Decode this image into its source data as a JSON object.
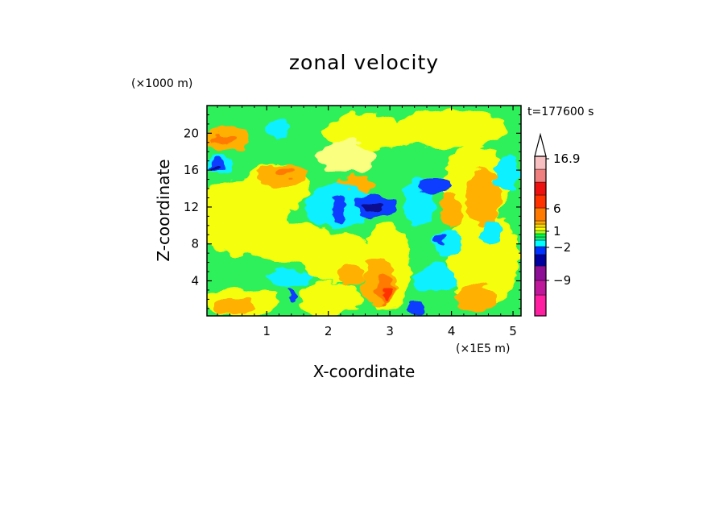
{
  "chart_data": {
    "type": "heatmap",
    "title": "zonal velocity",
    "xlabel": "X-coordinate",
    "ylabel": "Z-coordinate",
    "x_scale_label": "(×1E5 m)",
    "y_scale_label": "(×1000 m)",
    "time_label": "t=177600 s",
    "xlim": [
      0.03,
      5.13
    ],
    "ylim": [
      0.2,
      23.0
    ],
    "x_ticks": [
      1,
      2,
      3,
      4,
      5
    ],
    "x_tick_labels": [
      "1",
      "2",
      "3",
      "4",
      "5"
    ],
    "y_ticks": [
      4,
      8,
      12,
      16,
      20
    ],
    "y_tick_labels": [
      "4",
      "8",
      "12",
      "16",
      "20"
    ],
    "colorbar": {
      "labels": [
        {
          "text": "16.9",
          "at_level": 16.9
        },
        {
          "text": "6",
          "at_level": 6
        },
        {
          "text": "1",
          "at_level": 1
        },
        {
          "text": "−2",
          "at_level": -2
        },
        {
          "text": "−9",
          "at_level": -9
        }
      ],
      "colors": [
        "#ff1fa0",
        "#c0189a",
        "#8c0f96",
        "#0000a0",
        "#0033ff",
        "#00ffff",
        "#19e87a",
        "#00ff44",
        "#aaff22",
        "#ffff00",
        "#ffd700",
        "#ffaa00",
        "#ff7a00",
        "#ff3300",
        "#ee1111",
        "#f08080",
        "#f8c0c0"
      ],
      "extend_color": "#ffffff"
    },
    "colors": {
      "bg_green": "#2ef05a",
      "yellow": "#f5ff10",
      "light_yellow": "#faff80",
      "orange": "#ffb000",
      "dark_orange": "#ff7a00",
      "red": "#ff3300",
      "cyan": "#10f0ff",
      "blue": "#0a3cff",
      "navy": "#0a0a90"
    }
  }
}
